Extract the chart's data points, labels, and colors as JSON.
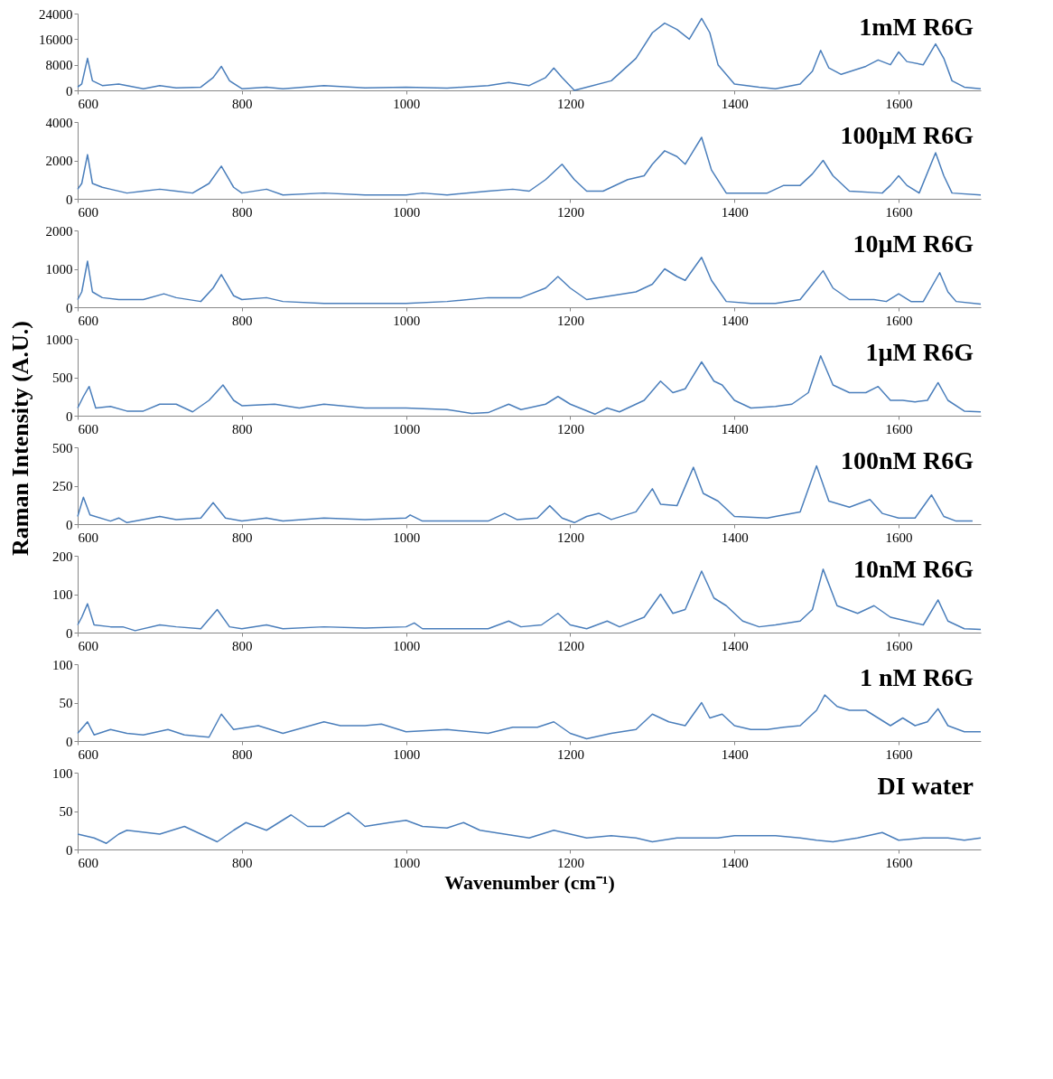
{
  "chart_data": [
    {
      "type": "line",
      "color": "#4a7ebb",
      "grid": false,
      "annotations": [
        "1mM R6G"
      ],
      "xlim": [
        600,
        1700
      ],
      "xticks": [
        600,
        800,
        1000,
        1200,
        1400,
        1600
      ],
      "ylim": [
        0,
        24000
      ],
      "yticks": [
        0,
        8000,
        16000,
        24000
      ],
      "x": [
        600,
        605,
        612,
        618,
        630,
        650,
        660,
        680,
        700,
        720,
        750,
        765,
        775,
        785,
        800,
        830,
        850,
        900,
        950,
        1000,
        1050,
        1100,
        1125,
        1150,
        1170,
        1180,
        1190,
        1205,
        1220,
        1250,
        1280,
        1300,
        1315,
        1330,
        1345,
        1360,
        1370,
        1380,
        1400,
        1430,
        1450,
        1480,
        1495,
        1505,
        1515,
        1530,
        1560,
        1575,
        1590,
        1600,
        1610,
        1630,
        1645,
        1655,
        1665,
        1680,
        1700
      ],
      "values": [
        1000,
        2000,
        10000,
        3000,
        1500,
        2000,
        1500,
        500,
        1500,
        800,
        1000,
        4000,
        7500,
        3000,
        500,
        1000,
        500,
        1500,
        800,
        1000,
        700,
        1500,
        2500,
        1500,
        4000,
        7000,
        4000,
        0,
        1000,
        3000,
        10000,
        18000,
        21000,
        19000,
        16000,
        22500,
        18000,
        8000,
        2000,
        1000,
        500,
        2000,
        6000,
        12500,
        7000,
        5000,
        7500,
        9500,
        8000,
        12000,
        9000,
        8000,
        14500,
        10000,
        3000,
        1000,
        500
      ]
    },
    {
      "type": "line",
      "color": "#4a7ebb",
      "grid": false,
      "annotations": [
        "100µM R6G"
      ],
      "xlim": [
        600,
        1700
      ],
      "xticks": [
        600,
        800,
        1000,
        1200,
        1400,
        1600
      ],
      "ylim": [
        0,
        4000
      ],
      "yticks": [
        0,
        2000,
        4000
      ],
      "x": [
        600,
        605,
        612,
        618,
        630,
        640,
        660,
        680,
        700,
        720,
        740,
        760,
        775,
        790,
        800,
        830,
        850,
        900,
        950,
        1000,
        1020,
        1050,
        1100,
        1130,
        1150,
        1170,
        1190,
        1205,
        1220,
        1240,
        1270,
        1290,
        1300,
        1315,
        1330,
        1340,
        1360,
        1372,
        1390,
        1420,
        1440,
        1460,
        1480,
        1495,
        1508,
        1520,
        1540,
        1580,
        1590,
        1600,
        1610,
        1625,
        1645,
        1655,
        1665,
        1700
      ],
      "values": [
        500,
        800,
        2300,
        800,
        600,
        500,
        300,
        400,
        500,
        400,
        300,
        800,
        1700,
        600,
        300,
        500,
        200,
        300,
        200,
        200,
        300,
        200,
        400,
        500,
        400,
        1000,
        1800,
        1000,
        400,
        400,
        1000,
        1200,
        1800,
        2500,
        2200,
        1800,
        3200,
        1500,
        300,
        300,
        300,
        700,
        700,
        1300,
        2000,
        1200,
        400,
        300,
        700,
        1200,
        700,
        300,
        2400,
        1200,
        300,
        200
      ]
    },
    {
      "type": "line",
      "color": "#4a7ebb",
      "grid": false,
      "annotations": [
        "10µM R6G"
      ],
      "xlim": [
        600,
        1700
      ],
      "xticks": [
        600,
        800,
        1000,
        1200,
        1400,
        1600
      ],
      "ylim": [
        0,
        2000
      ],
      "yticks": [
        0,
        1000,
        2000
      ],
      "x": [
        600,
        605,
        612,
        618,
        630,
        650,
        680,
        705,
        720,
        750,
        765,
        775,
        790,
        800,
        830,
        850,
        900,
        1000,
        1050,
        1100,
        1140,
        1170,
        1185,
        1200,
        1220,
        1250,
        1280,
        1300,
        1315,
        1330,
        1340,
        1360,
        1372,
        1390,
        1420,
        1450,
        1480,
        1495,
        1508,
        1520,
        1540,
        1570,
        1585,
        1600,
        1615,
        1630,
        1650,
        1660,
        1670,
        1700
      ],
      "values": [
        200,
        400,
        1200,
        400,
        250,
        200,
        200,
        350,
        250,
        150,
        500,
        850,
        300,
        200,
        250,
        150,
        100,
        100,
        150,
        250,
        250,
        500,
        800,
        500,
        200,
        300,
        400,
        600,
        1000,
        800,
        700,
        1300,
        700,
        150,
        100,
        100,
        200,
        600,
        950,
        500,
        200,
        200,
        150,
        350,
        150,
        150,
        900,
        400,
        150,
        80
      ]
    },
    {
      "type": "line",
      "color": "#4a7ebb",
      "grid": false,
      "annotations": [
        "1µM R6G"
      ],
      "ylabel": "Raman Intensity (A.U.)",
      "xlim": [
        600,
        1700
      ],
      "xticks": [
        600,
        800,
        1000,
        1200,
        1400,
        1600
      ],
      "ylim": [
        0,
        1000
      ],
      "yticks": [
        0,
        500,
        1000
      ],
      "x": [
        600,
        607,
        614,
        622,
        640,
        660,
        680,
        700,
        720,
        740,
        760,
        777,
        790,
        800,
        840,
        870,
        900,
        950,
        1000,
        1050,
        1080,
        1100,
        1125,
        1140,
        1170,
        1185,
        1200,
        1230,
        1245,
        1260,
        1290,
        1310,
        1325,
        1340,
        1360,
        1375,
        1385,
        1400,
        1420,
        1450,
        1470,
        1490,
        1505,
        1520,
        1540,
        1560,
        1575,
        1590,
        1605,
        1620,
        1635,
        1648,
        1660,
        1680,
        1700
      ],
      "values": [
        100,
        250,
        380,
        100,
        120,
        60,
        60,
        150,
        150,
        50,
        200,
        400,
        200,
        130,
        150,
        100,
        150,
        100,
        100,
        80,
        30,
        40,
        150,
        80,
        150,
        250,
        150,
        20,
        100,
        50,
        200,
        450,
        300,
        350,
        700,
        450,
        400,
        200,
        100,
        120,
        150,
        300,
        780,
        400,
        300,
        300,
        380,
        200,
        200,
        180,
        200,
        430,
        200,
        60,
        50
      ]
    },
    {
      "type": "line",
      "color": "#4a7ebb",
      "grid": false,
      "annotations": [
        "100nM R6G"
      ],
      "xlim": [
        600,
        1700
      ],
      "xticks": [
        600,
        800,
        1000,
        1200,
        1400,
        1600
      ],
      "ylim": [
        0,
        500
      ],
      "yticks": [
        0,
        250,
        500
      ],
      "x": [
        600,
        607,
        615,
        640,
        650,
        660,
        700,
        720,
        750,
        765,
        780,
        800,
        830,
        850,
        900,
        950,
        1000,
        1005,
        1020,
        1100,
        1120,
        1135,
        1160,
        1175,
        1190,
        1205,
        1220,
        1235,
        1250,
        1280,
        1300,
        1310,
        1330,
        1350,
        1362,
        1380,
        1400,
        1440,
        1450,
        1480,
        1500,
        1515,
        1540,
        1565,
        1580,
        1600,
        1620,
        1640,
        1655,
        1670,
        1690
      ],
      "values": [
        50,
        175,
        60,
        20,
        40,
        10,
        50,
        30,
        40,
        140,
        40,
        20,
        40,
        20,
        40,
        30,
        40,
        60,
        20,
        20,
        70,
        30,
        40,
        120,
        40,
        10,
        50,
        70,
        30,
        80,
        230,
        130,
        120,
        370,
        200,
        150,
        50,
        40,
        50,
        80,
        380,
        150,
        110,
        160,
        70,
        40,
        40,
        190,
        50,
        20,
        20
      ]
    },
    {
      "type": "line",
      "color": "#4a7ebb",
      "grid": false,
      "annotations": [
        "10nM R6G"
      ],
      "xlim": [
        600,
        1700
      ],
      "xticks": [
        600,
        800,
        1000,
        1200,
        1400,
        1600
      ],
      "ylim": [
        0,
        200
      ],
      "yticks": [
        0,
        100,
        200
      ],
      "x": [
        600,
        605,
        612,
        620,
        640,
        655,
        670,
        700,
        720,
        750,
        770,
        785,
        800,
        830,
        850,
        900,
        950,
        1000,
        1010,
        1020,
        1100,
        1125,
        1140,
        1165,
        1185,
        1200,
        1220,
        1245,
        1260,
        1290,
        1310,
        1325,
        1340,
        1360,
        1375,
        1390,
        1410,
        1430,
        1450,
        1480,
        1495,
        1508,
        1525,
        1550,
        1570,
        1590,
        1610,
        1630,
        1648,
        1660,
        1680,
        1700
      ],
      "values": [
        20,
        40,
        75,
        20,
        15,
        15,
        5,
        20,
        15,
        10,
        60,
        15,
        10,
        20,
        10,
        15,
        12,
        15,
        25,
        10,
        10,
        30,
        15,
        20,
        50,
        20,
        10,
        30,
        15,
        40,
        100,
        50,
        60,
        160,
        90,
        70,
        30,
        15,
        20,
        30,
        60,
        165,
        70,
        50,
        70,
        40,
        30,
        20,
        85,
        30,
        10,
        8
      ]
    },
    {
      "type": "line",
      "color": "#4a7ebb",
      "grid": false,
      "annotations": [
        "1 nM R6G"
      ],
      "xlim": [
        600,
        1700
      ],
      "xticks": [
        600,
        800,
        1000,
        1200,
        1400,
        1600
      ],
      "ylim": [
        0,
        100
      ],
      "yticks": [
        0,
        50,
        100
      ],
      "x": [
        600,
        612,
        620,
        640,
        660,
        680,
        710,
        730,
        760,
        775,
        790,
        820,
        850,
        900,
        920,
        950,
        970,
        1000,
        1050,
        1100,
        1130,
        1160,
        1180,
        1200,
        1220,
        1250,
        1280,
        1300,
        1320,
        1340,
        1360,
        1370,
        1385,
        1400,
        1420,
        1440,
        1460,
        1480,
        1500,
        1510,
        1525,
        1540,
        1560,
        1575,
        1590,
        1605,
        1620,
        1635,
        1648,
        1660,
        1680,
        1700
      ],
      "values": [
        10,
        25,
        8,
        15,
        10,
        8,
        15,
        8,
        5,
        35,
        15,
        20,
        10,
        25,
        20,
        20,
        22,
        12,
        15,
        10,
        18,
        18,
        25,
        10,
        3,
        10,
        15,
        35,
        25,
        20,
        50,
        30,
        35,
        20,
        15,
        15,
        18,
        20,
        40,
        60,
        45,
        40,
        40,
        30,
        20,
        30,
        20,
        25,
        42,
        20,
        12,
        12
      ]
    },
    {
      "type": "line",
      "color": "#4a7ebb",
      "grid": false,
      "annotations": [
        "DI water"
      ],
      "xlabel": "Wavenumber (cm⁻¹)",
      "xlim": [
        600,
        1700
      ],
      "xticks": [
        600,
        800,
        1000,
        1200,
        1400,
        1600
      ],
      "ylim": [
        0,
        100
      ],
      "yticks": [
        0,
        50,
        100
      ],
      "x": [
        600,
        620,
        635,
        650,
        660,
        700,
        730,
        750,
        770,
        790,
        805,
        830,
        860,
        880,
        900,
        930,
        950,
        980,
        1000,
        1020,
        1050,
        1070,
        1090,
        1120,
        1150,
        1180,
        1200,
        1220,
        1250,
        1280,
        1300,
        1330,
        1360,
        1380,
        1400,
        1450,
        1480,
        1500,
        1520,
        1550,
        1580,
        1600,
        1630,
        1660,
        1680,
        1700
      ],
      "values": [
        20,
        15,
        8,
        20,
        25,
        20,
        30,
        20,
        10,
        25,
        35,
        25,
        45,
        30,
        30,
        48,
        30,
        35,
        38,
        30,
        28,
        35,
        25,
        20,
        15,
        25,
        20,
        15,
        18,
        15,
        10,
        15,
        15,
        15,
        18,
        18,
        15,
        12,
        10,
        15,
        22,
        12,
        15,
        15,
        12,
        15
      ]
    }
  ]
}
